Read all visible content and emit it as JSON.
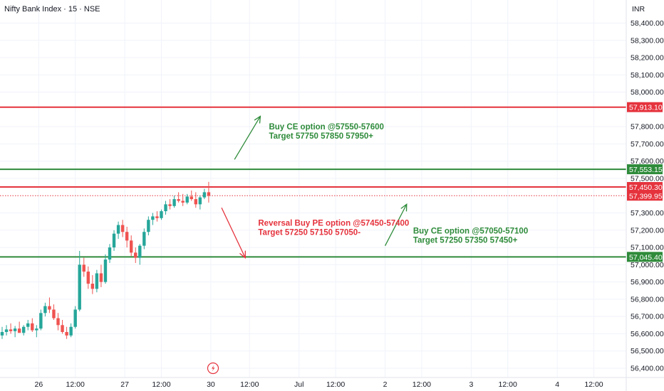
{
  "header": {
    "title": "Nifty Bank Index · 15 · NSE",
    "currency": "INR"
  },
  "colors": {
    "up": "#26a69a",
    "down": "#ef5350",
    "support": "#2e8b3a",
    "resistance": "#e5333d",
    "grid": "#f0f3fa",
    "axis_text": "#131722"
  },
  "chart_data": {
    "type": "candlestick",
    "title": "Nifty Bank Index · 15 · NSE",
    "ylim": [
      56360,
      58480
    ],
    "yticks": [
      {
        "value": 58400,
        "label": "58,400.00"
      },
      {
        "value": 58300,
        "label": "58,300.00"
      },
      {
        "value": 58200,
        "label": "58,200.00"
      },
      {
        "value": 58100,
        "label": "58,100.00"
      },
      {
        "value": 58000,
        "label": "58,000.00"
      },
      {
        "value": 57800,
        "label": "57,800.00"
      },
      {
        "value": 57700,
        "label": "57,700.00"
      },
      {
        "value": 57600,
        "label": "57,600.00"
      },
      {
        "value": 57500,
        "label": "57,500.00"
      },
      {
        "value": 57300,
        "label": "57,300.00"
      },
      {
        "value": 57200,
        "label": "57,200.00"
      },
      {
        "value": 57100,
        "label": "57,100.00"
      },
      {
        "value": 57000,
        "label": "57,000.00"
      },
      {
        "value": 56900,
        "label": "56,900.00"
      },
      {
        "value": 56800,
        "label": "56,800.00"
      },
      {
        "value": 56700,
        "label": "56,700.00"
      },
      {
        "value": 56600,
        "label": "56,600.00"
      },
      {
        "value": 56500,
        "label": "56,500.00"
      },
      {
        "value": 56400,
        "label": "56,400.00"
      }
    ],
    "xticks": [
      {
        "slot": 8.5,
        "label": "26"
      },
      {
        "slot": 17,
        "label": "12:00"
      },
      {
        "slot": 28.5,
        "label": "27"
      },
      {
        "slot": 37,
        "label": "12:00"
      },
      {
        "slot": 48.5,
        "label": "30"
      },
      {
        "slot": 57.5,
        "label": "12:00"
      },
      {
        "slot": 69,
        "label": "Jul"
      },
      {
        "slot": 77.5,
        "label": "12:00"
      },
      {
        "slot": 89,
        "label": "2"
      },
      {
        "slot": 97.5,
        "label": "12:00"
      },
      {
        "slot": 109,
        "label": "3"
      },
      {
        "slot": 117.5,
        "label": "12:00"
      },
      {
        "slot": 129,
        "label": "4"
      },
      {
        "slot": 137.5,
        "label": "12:00"
      }
    ],
    "candles": [
      {
        "o": 56590,
        "h": 56640,
        "l": 56570,
        "c": 56610
      },
      {
        "o": 56610,
        "h": 56650,
        "l": 56590,
        "c": 56625
      },
      {
        "o": 56625,
        "h": 56660,
        "l": 56600,
        "c": 56615
      },
      {
        "o": 56615,
        "h": 56645,
        "l": 56580,
        "c": 56630
      },
      {
        "o": 56630,
        "h": 56670,
        "l": 56610,
        "c": 56605
      },
      {
        "o": 56605,
        "h": 56650,
        "l": 56590,
        "c": 56640
      },
      {
        "o": 56640,
        "h": 56680,
        "l": 56620,
        "c": 56660
      },
      {
        "o": 56660,
        "h": 56690,
        "l": 56610,
        "c": 56620
      },
      {
        "o": 56620,
        "h": 56650,
        "l": 56580,
        "c": 56630
      },
      {
        "o": 56630,
        "h": 56740,
        "l": 56620,
        "c": 56720
      },
      {
        "o": 56720,
        "h": 56780,
        "l": 56700,
        "c": 56760
      },
      {
        "o": 56760,
        "h": 56810,
        "l": 56720,
        "c": 56740
      },
      {
        "o": 56740,
        "h": 56770,
        "l": 56680,
        "c": 56690
      },
      {
        "o": 56690,
        "h": 56720,
        "l": 56620,
        "c": 56650
      },
      {
        "o": 56650,
        "h": 56680,
        "l": 56600,
        "c": 56610
      },
      {
        "o": 56610,
        "h": 56640,
        "l": 56570,
        "c": 56590
      },
      {
        "o": 56590,
        "h": 56660,
        "l": 56580,
        "c": 56640
      },
      {
        "o": 56640,
        "h": 56760,
        "l": 56630,
        "c": 56740
      },
      {
        "o": 56740,
        "h": 57080,
        "l": 56730,
        "c": 57000
      },
      {
        "o": 57000,
        "h": 57040,
        "l": 56930,
        "c": 56960
      },
      {
        "o": 56960,
        "h": 56990,
        "l": 56860,
        "c": 56890
      },
      {
        "o": 56890,
        "h": 56940,
        "l": 56830,
        "c": 56860
      },
      {
        "o": 56860,
        "h": 56970,
        "l": 56840,
        "c": 56950
      },
      {
        "o": 56950,
        "h": 57000,
        "l": 56870,
        "c": 56900
      },
      {
        "o": 56900,
        "h": 57060,
        "l": 56890,
        "c": 57030
      },
      {
        "o": 57030,
        "h": 57120,
        "l": 57010,
        "c": 57100
      },
      {
        "o": 57100,
        "h": 57200,
        "l": 57080,
        "c": 57180
      },
      {
        "o": 57180,
        "h": 57250,
        "l": 57150,
        "c": 57230
      },
      {
        "o": 57230,
        "h": 57260,
        "l": 57160,
        "c": 57190
      },
      {
        "o": 57190,
        "h": 57220,
        "l": 57100,
        "c": 57140
      },
      {
        "o": 57140,
        "h": 57170,
        "l": 57050,
        "c": 57070
      },
      {
        "o": 57070,
        "h": 57100,
        "l": 57010,
        "c": 57040
      },
      {
        "o": 57040,
        "h": 57120,
        "l": 57000,
        "c": 57110
      },
      {
        "o": 57110,
        "h": 57210,
        "l": 57090,
        "c": 57190
      },
      {
        "o": 57190,
        "h": 57280,
        "l": 57170,
        "c": 57260
      },
      {
        "o": 57260,
        "h": 57300,
        "l": 57230,
        "c": 57280
      },
      {
        "o": 57280,
        "h": 57310,
        "l": 57250,
        "c": 57270
      },
      {
        "o": 57270,
        "h": 57320,
        "l": 57260,
        "c": 57310
      },
      {
        "o": 57310,
        "h": 57370,
        "l": 57290,
        "c": 57350
      },
      {
        "o": 57350,
        "h": 57380,
        "l": 57320,
        "c": 57340
      },
      {
        "o": 57340,
        "h": 57400,
        "l": 57330,
        "c": 57380
      },
      {
        "o": 57380,
        "h": 57420,
        "l": 57360,
        "c": 57370
      },
      {
        "o": 57370,
        "h": 57410,
        "l": 57340,
        "c": 57360
      },
      {
        "o": 57360,
        "h": 57410,
        "l": 57350,
        "c": 57395
      },
      {
        "o": 57395,
        "h": 57430,
        "l": 57370,
        "c": 57380
      },
      {
        "o": 57380,
        "h": 57420,
        "l": 57330,
        "c": 57350
      },
      {
        "o": 57350,
        "h": 57400,
        "l": 57320,
        "c": 57390
      },
      {
        "o": 57390,
        "h": 57440,
        "l": 57380,
        "c": 57420
      },
      {
        "o": 57420,
        "h": 57480,
        "l": 57360,
        "c": 57399
      }
    ],
    "levels": [
      {
        "value": 57913.1,
        "label": "57,913.10",
        "kind": "resistance",
        "style": "solid"
      },
      {
        "value": 57553.15,
        "label": "57,553.15",
        "kind": "support",
        "style": "solid"
      },
      {
        "value": 57450.3,
        "label": "57,450.30",
        "kind": "resistance",
        "style": "solid"
      },
      {
        "value": 57399.95,
        "label": "57,399.95",
        "kind": "resistance",
        "style": "dotted"
      },
      {
        "value": 57045.4,
        "label": "57,045.40",
        "kind": "support",
        "style": "solid"
      }
    ],
    "annotations": [
      {
        "text": [
          "Buy CE option @57550-57600",
          "Target 57750 57850 57950+"
        ],
        "color": "support",
        "slot": 62,
        "price": 57785
      },
      {
        "text": [
          "Reversal Buy PE option @57450-57400",
          "Target 57250 57150 57050-"
        ],
        "color": "resistance",
        "slot": 59.5,
        "price": 57225
      },
      {
        "text": [
          "Buy CE option @57050-57100",
          "Target 57250 57350 57450+"
        ],
        "color": "support",
        "slot": 95.5,
        "price": 57180
      }
    ],
    "arrows": [
      {
        "from": {
          "slot": 54,
          "price": 57610
        },
        "to": {
          "slot": 60,
          "price": 57860
        },
        "color": "support"
      },
      {
        "from": {
          "slot": 51,
          "price": 57330
        },
        "to": {
          "slot": 56.5,
          "price": 57040
        },
        "color": "resistance"
      },
      {
        "from": {
          "slot": 89,
          "price": 57110
        },
        "to": {
          "slot": 94,
          "price": 57350
        },
        "color": "support"
      }
    ]
  }
}
